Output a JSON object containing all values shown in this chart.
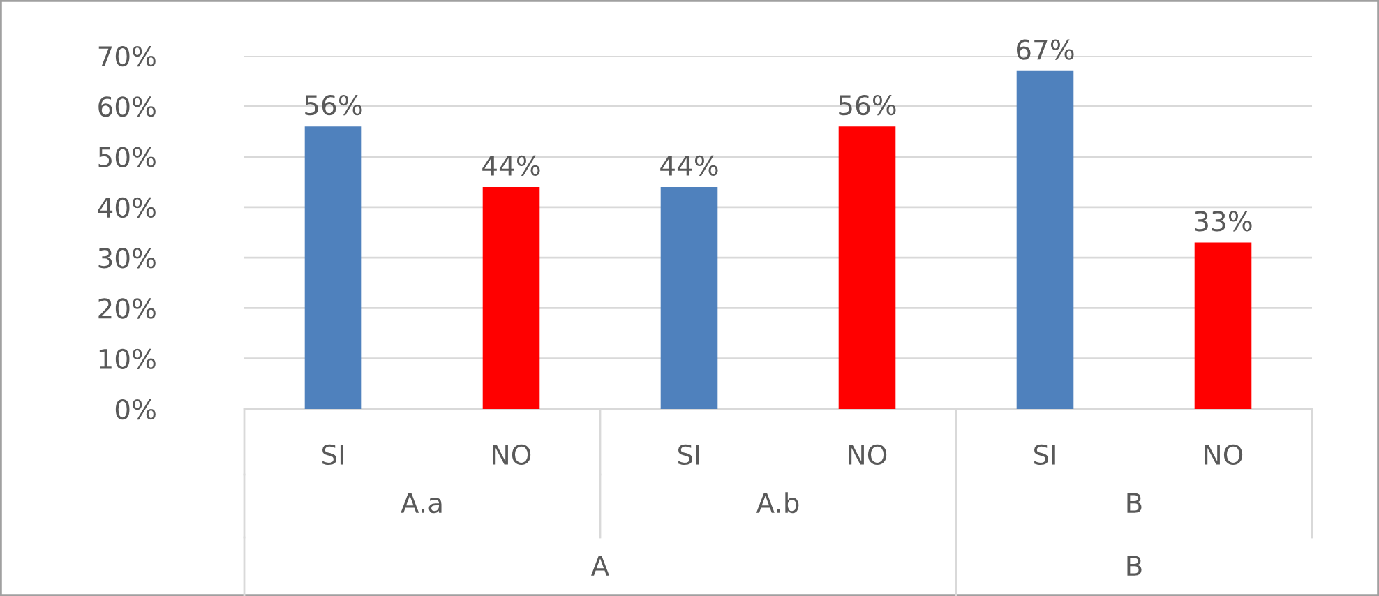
{
  "chart_data": {
    "type": "bar",
    "categories": [
      "SI",
      "NO",
      "SI",
      "NO",
      "SI",
      "NO"
    ],
    "values": [
      56,
      44,
      44,
      56,
      67,
      33
    ],
    "colors": [
      "#4f81bd",
      "#ff0000",
      "#4f81bd",
      "#ff0000",
      "#4f81bd",
      "#ff0000"
    ],
    "value_labels": [
      "56%",
      "44%",
      "44%",
      "56%",
      "67%",
      "33%"
    ],
    "ylim": [
      0,
      70
    ],
    "yticks": [
      {
        "value": 0,
        "label": "0%"
      },
      {
        "value": 10,
        "label": "10%"
      },
      {
        "value": 20,
        "label": "20%"
      },
      {
        "value": 30,
        "label": "30%"
      },
      {
        "value": 40,
        "label": "40%"
      },
      {
        "value": 50,
        "label": "50%"
      },
      {
        "value": 60,
        "label": "60%"
      },
      {
        "value": 70,
        "label": "70%"
      }
    ],
    "grid": "y",
    "legend": false,
    "annotations": [
      "A.a",
      "A.b",
      "B",
      "A",
      "B"
    ]
  }
}
